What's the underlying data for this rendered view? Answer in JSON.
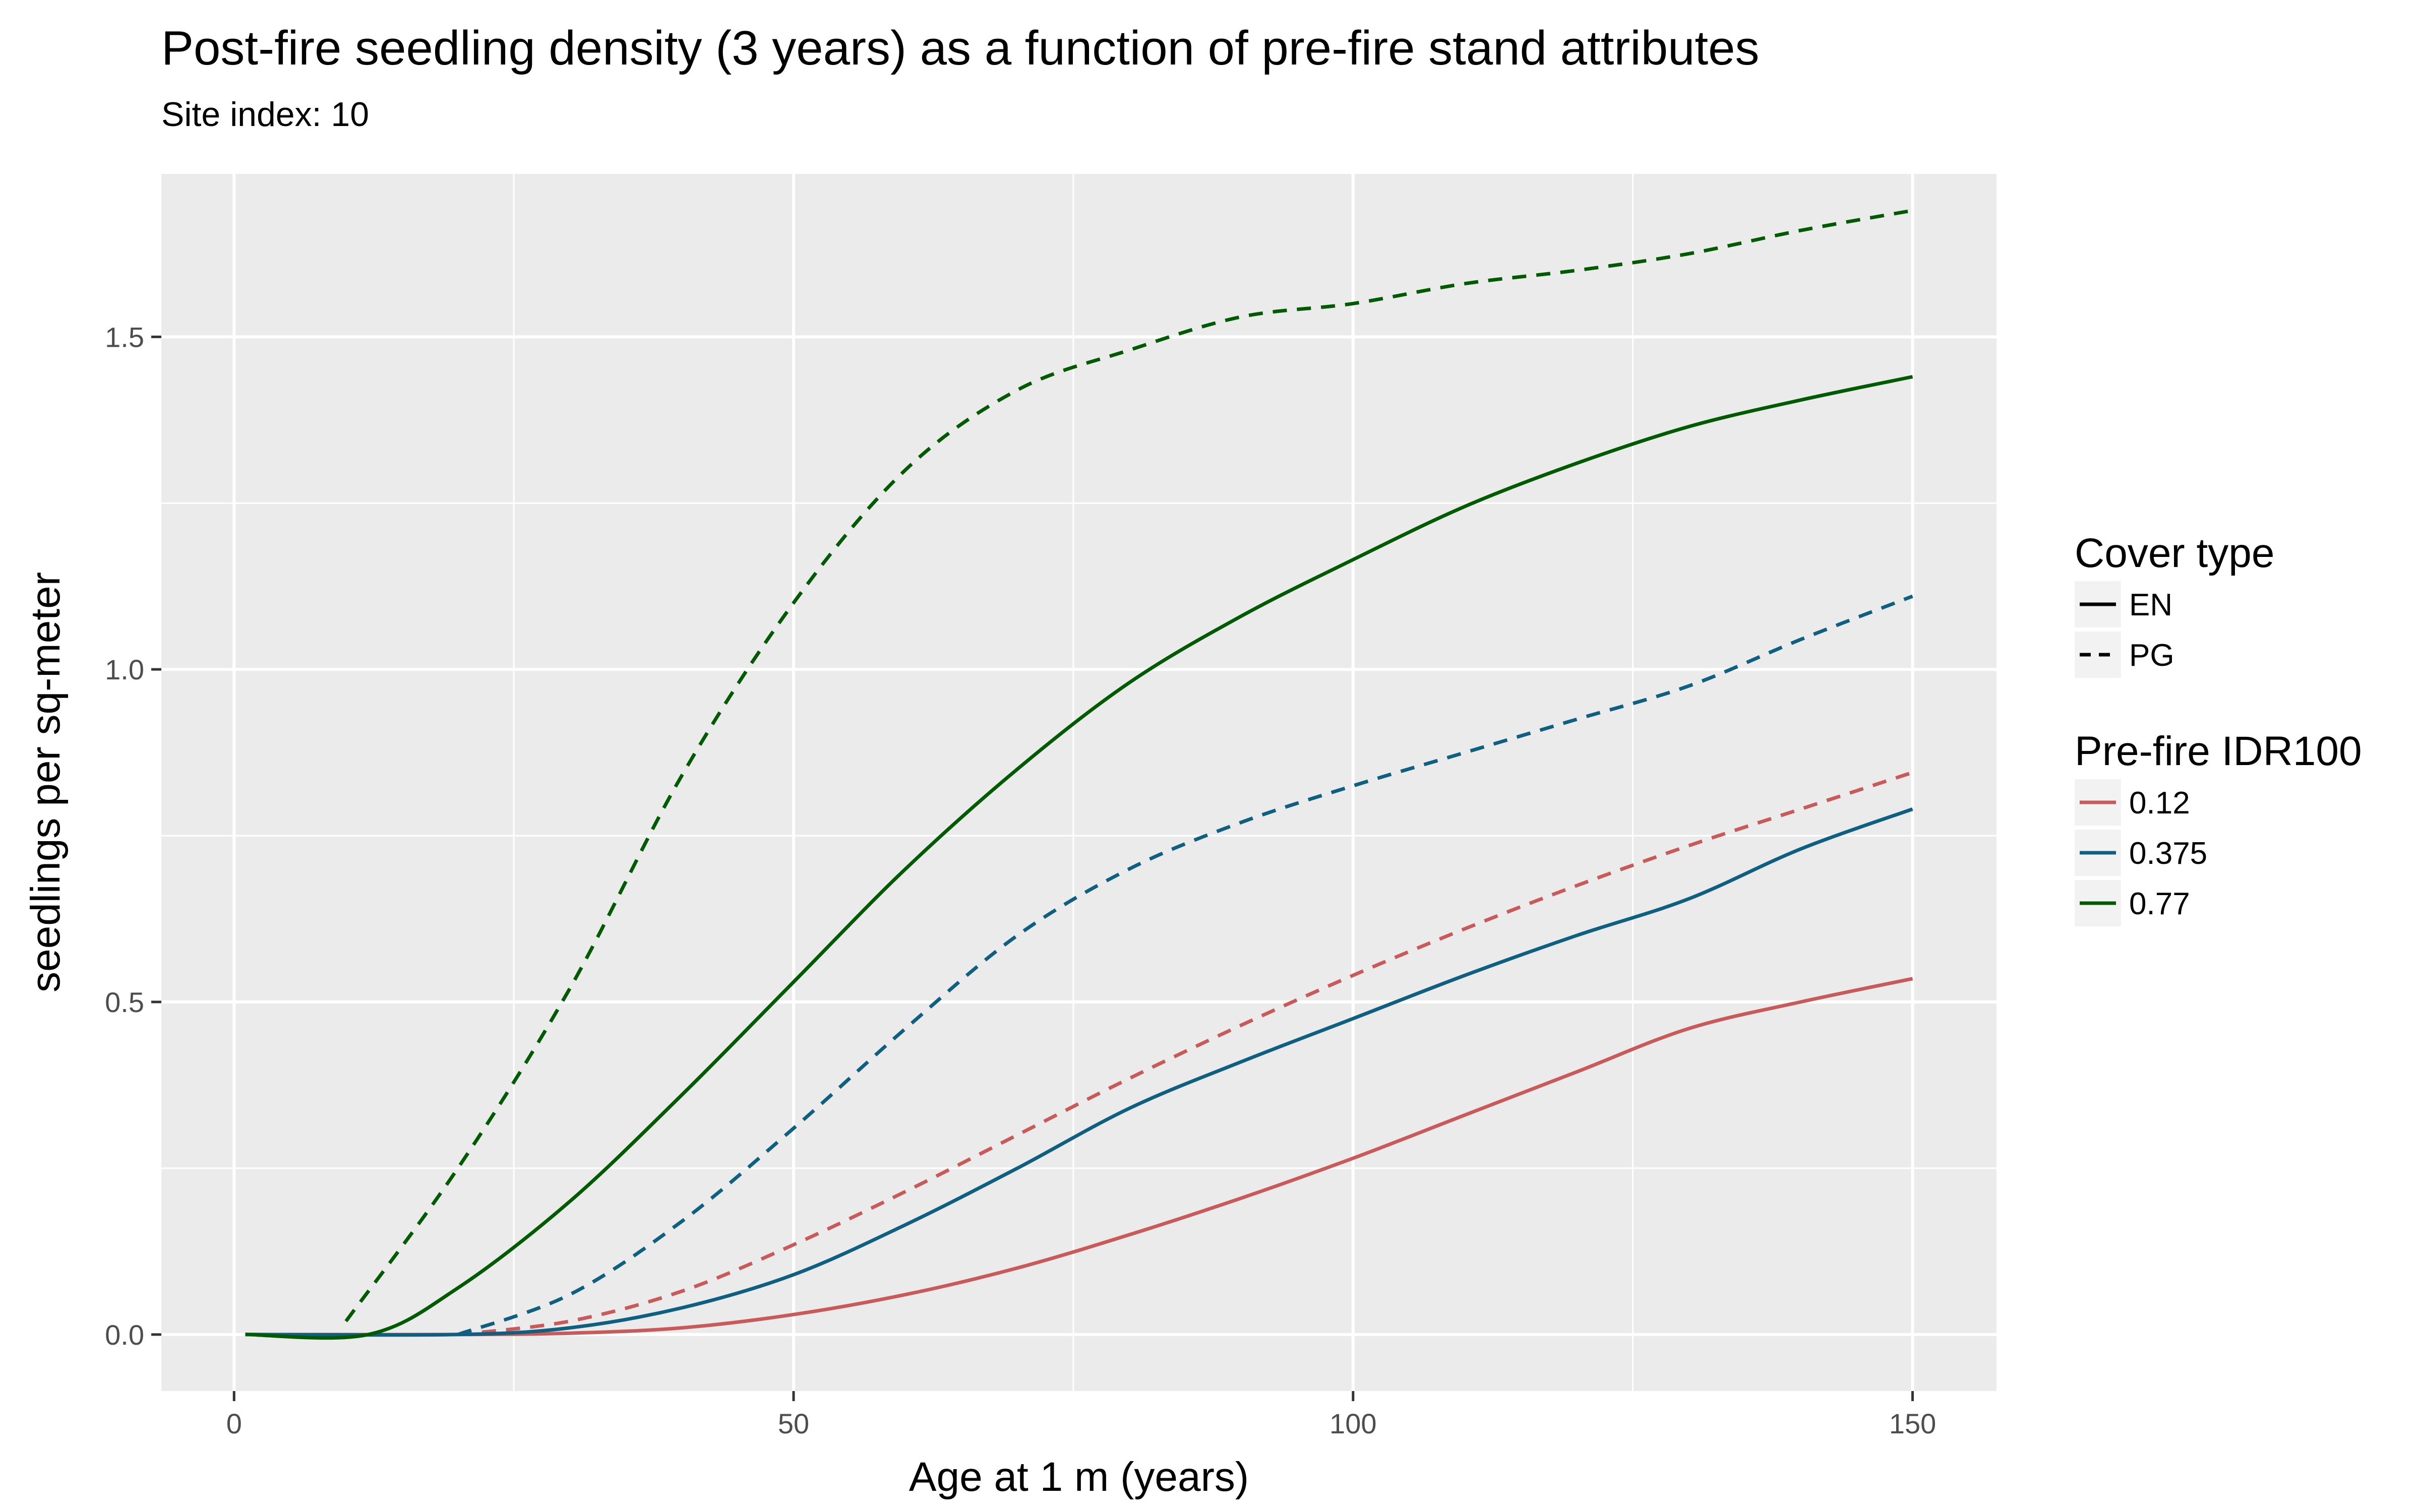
{
  "chart_data": {
    "type": "line",
    "title": "Post-fire seedling density (3 years) as a function of pre-fire stand attributes",
    "subtitle": "Site index: 10",
    "xlabel": "Age at 1 m (years)",
    "ylabel": "seedlings per sq-meter",
    "xlim": [
      -6.5,
      157.5
    ],
    "ylim": [
      -0.085,
      1.745
    ],
    "x_ticks": [
      0,
      50,
      100,
      150
    ],
    "x_tick_labels": [
      "0",
      "50",
      "100",
      "150"
    ],
    "y_ticks": [
      0,
      0.5,
      1,
      1.5
    ],
    "y_tick_labels": [
      "0.0",
      "0.5",
      "1.0",
      "1.5"
    ],
    "grid": true,
    "legend_placement": "right",
    "legends": [
      {
        "title": "Cover type",
        "entries": [
          {
            "label": "EN",
            "linetype": "solid"
          },
          {
            "label": "PG",
            "linetype": "dashed"
          }
        ]
      },
      {
        "title": "Pre-fire IDR100",
        "entries": [
          {
            "label": "0.12",
            "color": "#c85a5a"
          },
          {
            "label": "0.375",
            "color": "#0e5f80"
          },
          {
            "label": "0.77",
            "color": "#005a00"
          }
        ]
      }
    ],
    "series": [
      {
        "cover": "EN",
        "idr": "0.12",
        "color": "#c85a5a",
        "linetype": "solid",
        "x": [
          1,
          20,
          30,
          40,
          50,
          60,
          70,
          80,
          90,
          100,
          110,
          120,
          130,
          140,
          150
        ],
        "y": [
          0,
          0,
          0.002,
          0.01,
          0.03,
          0.06,
          0.1,
          0.15,
          0.205,
          0.265,
          0.33,
          0.395,
          0.46,
          0.5,
          0.535
        ]
      },
      {
        "cover": "PG",
        "idr": "0.12",
        "color": "#c85a5a",
        "linetype": "dashed",
        "x": [
          20,
          30,
          40,
          50,
          60,
          70,
          80,
          90,
          100,
          110,
          120,
          130,
          140,
          150
        ],
        "y": [
          0,
          0.02,
          0.065,
          0.135,
          0.215,
          0.3,
          0.385,
          0.465,
          0.54,
          0.61,
          0.675,
          0.735,
          0.79,
          0.845
        ]
      },
      {
        "cover": "EN",
        "idr": "0.375",
        "color": "#0e5f80",
        "linetype": "solid",
        "x": [
          1,
          20,
          30,
          40,
          50,
          60,
          70,
          80,
          90,
          100,
          110,
          120,
          130,
          140,
          150
        ],
        "y": [
          0,
          0,
          0.01,
          0.04,
          0.09,
          0.165,
          0.25,
          0.34,
          0.41,
          0.475,
          0.54,
          0.6,
          0.655,
          0.73,
          0.79
        ]
      },
      {
        "cover": "PG",
        "idr": "0.375",
        "color": "#0e5f80",
        "linetype": "dashed",
        "x": [
          20,
          30,
          40,
          50,
          60,
          70,
          80,
          90,
          100,
          110,
          120,
          130,
          140,
          150
        ],
        "y": [
          0,
          0.06,
          0.17,
          0.31,
          0.46,
          0.6,
          0.7,
          0.77,
          0.825,
          0.875,
          0.925,
          0.975,
          1.045,
          1.11
        ]
      },
      {
        "cover": "EN",
        "idr": "0.77",
        "color": "#005a00",
        "linetype": "solid",
        "x": [
          1,
          12,
          20,
          30,
          40,
          50,
          60,
          70,
          80,
          90,
          100,
          110,
          120,
          130,
          140,
          150
        ],
        "y": [
          0,
          0,
          0.07,
          0.2,
          0.36,
          0.53,
          0.7,
          0.85,
          0.98,
          1.08,
          1.165,
          1.245,
          1.31,
          1.365,
          1.405,
          1.44
        ]
      },
      {
        "cover": "PG",
        "idr": "0.77",
        "color": "#005a00",
        "linetype": "dashed",
        "x": [
          10,
          20,
          30,
          40,
          50,
          60,
          70,
          80,
          90,
          100,
          110,
          120,
          130,
          140,
          150
        ],
        "y": [
          0.02,
          0.25,
          0.52,
          0.84,
          1.1,
          1.3,
          1.42,
          1.48,
          1.53,
          1.55,
          1.58,
          1.6,
          1.625,
          1.66,
          1.69
        ]
      }
    ]
  }
}
